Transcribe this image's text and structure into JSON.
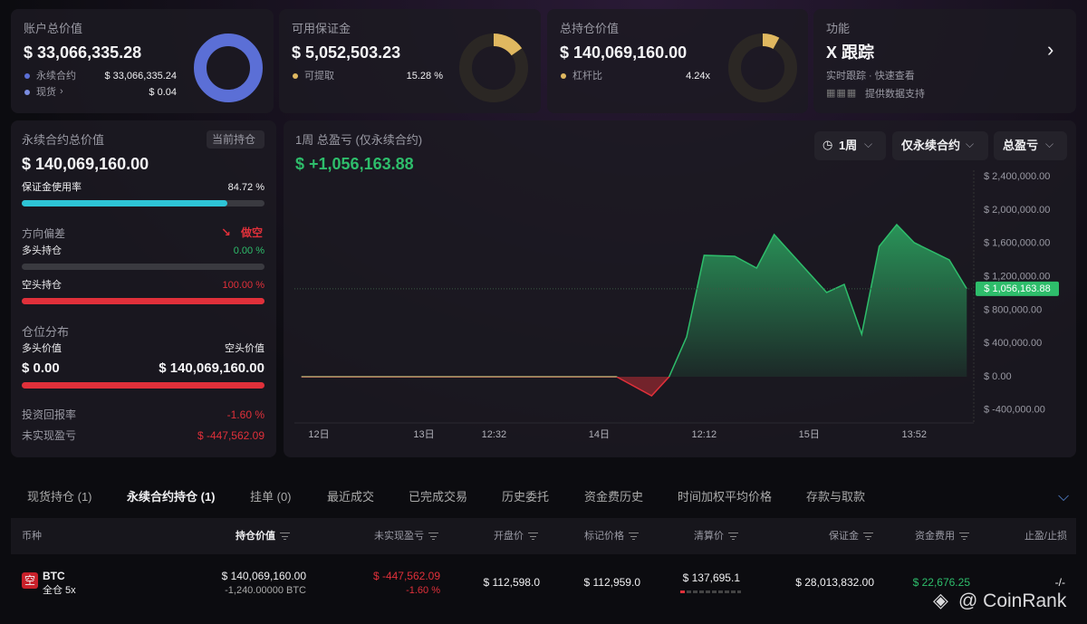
{
  "cards": [
    {
      "title": "账户总价值",
      "value": "$ 33,066,335.28",
      "rows": [
        {
          "label": "永续合约",
          "value": "$ 33,066,335.24"
        },
        {
          "label": "现货",
          "value": "$ 0.04"
        }
      ]
    },
    {
      "title": "可用保证金",
      "value": "$ 5,052,503.23",
      "rows": [
        {
          "label": "可提取",
          "value": {
            "value": 15.28,
            "label": "15.28 %"
          }
        }
      ]
    },
    {
      "title": "总持仓价值",
      "value": "$ 140,069,160.00",
      "rows": [
        {
          "label": "杠杆比",
          "value": "4.24x"
        }
      ]
    },
    {
      "title": "功能",
      "value": "X 跟踪",
      "subtitle": "实时跟踪 · 快速查看",
      "note": "提供数据支持"
    }
  ],
  "position": {
    "title": "永续合约总价值",
    "badge": "当前持仓",
    "value": "$ 140,069,160.00",
    "margin_usage": {
      "label": "保证金使用率",
      "value": {
        "value": 84.72,
        "label": "84.72 %"
      }
    },
    "bias": {
      "label": "方向偏差",
      "value": "做空"
    },
    "long": {
      "label": "多头持仓",
      "value": {
        "value": 0,
        "label": "0.00 %"
      }
    },
    "short": {
      "label": "空头持仓",
      "value": {
        "value": 100,
        "label": "100.00 %"
      }
    },
    "distribution": {
      "title": "仓位分布",
      "long_label": "多头价值",
      "short_label": "空头价值",
      "long_value": "$ 0.00",
      "short_value": "$ 140,069,160.00"
    },
    "roi": {
      "label": "投资回报率",
      "value": "-1.60 %"
    },
    "unrealized": {
      "label": "未实现盈亏",
      "value": "$ -447,562.09"
    }
  },
  "pnl_chart": {
    "type": "area",
    "title": "1周 总盈亏 (仅永续合约)",
    "value": "$ +1,056,163.88",
    "controls": [
      "1周",
      "仅永续合约",
      "总盈亏"
    ],
    "x": [
      -4,
      68,
      76,
      80,
      84,
      88,
      95,
      100,
      104,
      116,
      120,
      124,
      128,
      132,
      136,
      144,
      148
    ],
    "values": [
      0,
      0,
      -228000,
      0,
      478000,
      1457000,
      1446000,
      1304000,
      1707000,
      1011000,
      1109000,
      511000,
      1565000,
      1826000,
      1609000,
      1402000,
      1056163.88
    ],
    "current_label": "$ 1,056,163.88",
    "color": "#2ebd6b",
    "negative_color": "#e0303a",
    "xlim": [
      -5.6,
      149.6
    ],
    "ylim": [
      -554000,
      2478000
    ],
    "xticks": [
      {
        "value": 0,
        "label": "12日"
      },
      {
        "value": 24,
        "label": "13日"
      },
      {
        "value": 40,
        "label": "12:32"
      },
      {
        "value": 64,
        "label": "14日"
      },
      {
        "value": 88,
        "label": "12:12"
      },
      {
        "value": 112,
        "label": "15日"
      },
      {
        "value": 136,
        "label": "13:52"
      }
    ],
    "yticks": [
      {
        "value": 2400000,
        "label": "$ 2,400,000.00"
      },
      {
        "value": 2000000,
        "label": "$ 2,000,000.00"
      },
      {
        "value": 1600000,
        "label": "$ 1,600,000.00"
      },
      {
        "value": 1200000,
        "label": "$ 1,200,000.00"
      },
      {
        "value": 800000,
        "label": "$ 800,000.00"
      },
      {
        "value": 400000,
        "label": "$ 400,000.00"
      },
      {
        "value": 0,
        "label": "$ 0.00"
      },
      {
        "value": -400000,
        "label": "$ -400,000.00"
      }
    ]
  },
  "tabs": [
    "现货持仓 (1)",
    "永续合约持仓 (1)",
    "挂单 (0)",
    "最近成交",
    "已完成交易",
    "历史委托",
    "资金费历史",
    "时间加权平均价格",
    "存款与取款"
  ],
  "table": {
    "headers": [
      "币种",
      "持仓价值",
      "未实现盈亏",
      "开盘价",
      "标记价格",
      "清算价",
      "保证金",
      "资金费用",
      "止盈/止损"
    ],
    "rows": [
      {
        "side": "空",
        "symbol": "BTC",
        "mode": "全仓 5x",
        "value": "$ 140,069,160.00",
        "size": "-1,240.00000 BTC",
        "pnl": "$ -447,562.09",
        "pnl_pct": "-1.60 %",
        "open": "$ 112,598.0",
        "mark": "$ 112,959.0",
        "liq": "$ 137,695.1",
        "margin": "$ 28,013,832.00",
        "funding": "$ 22,676.25",
        "tpsl": "-/-"
      }
    ]
  },
  "watermark": "@ CoinRank"
}
